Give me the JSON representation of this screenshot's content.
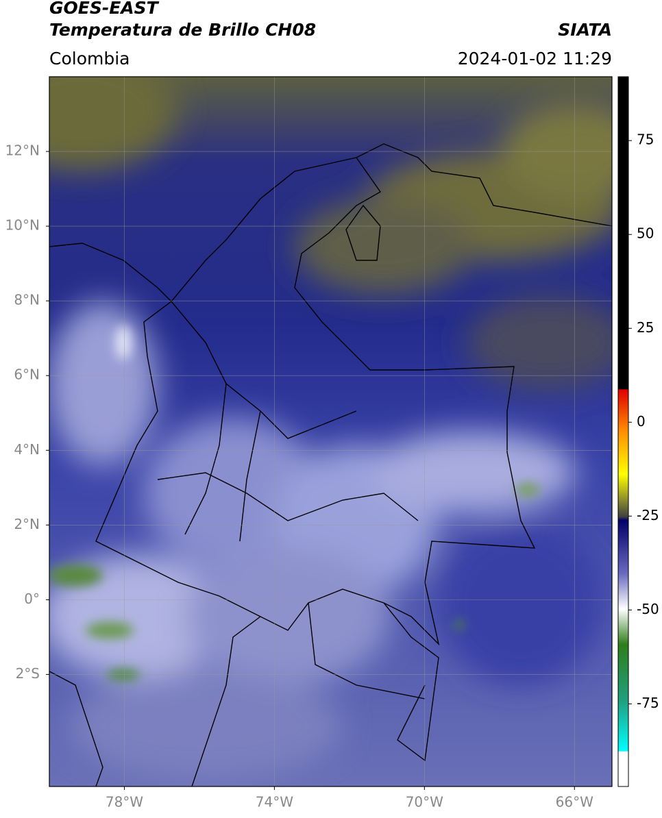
{
  "header": {
    "title": "GOES-EAST",
    "subtitle": "Temperatura de Brillo CH08",
    "source": "SIATA",
    "region": "Colombia",
    "timestamp": "2024-01-02 11:29"
  },
  "chart_data": {
    "type": "map",
    "xlim": [
      -80,
      -65
    ],
    "ylim": [
      -5,
      14
    ],
    "xticks": [
      {
        "value": -78,
        "label": "78°W"
      },
      {
        "value": -74,
        "label": "74°W"
      },
      {
        "value": -70,
        "label": "70°W"
      },
      {
        "value": -66,
        "label": "66°W"
      }
    ],
    "yticks": [
      {
        "value": 12,
        "label": "12°N"
      },
      {
        "value": 10,
        "label": "10°N"
      },
      {
        "value": 8,
        "label": "8°N"
      },
      {
        "value": 6,
        "label": "6°N"
      },
      {
        "value": 4,
        "label": "4°N"
      },
      {
        "value": 2,
        "label": "2°N"
      },
      {
        "value": 0,
        "label": "0°"
      },
      {
        "value": -2,
        "label": "2°S"
      }
    ],
    "grid": true,
    "colorbar": {
      "lim": [
        -97,
        92
      ],
      "ticks": [
        75,
        50,
        25,
        0,
        -25,
        -50,
        -75
      ]
    }
  }
}
